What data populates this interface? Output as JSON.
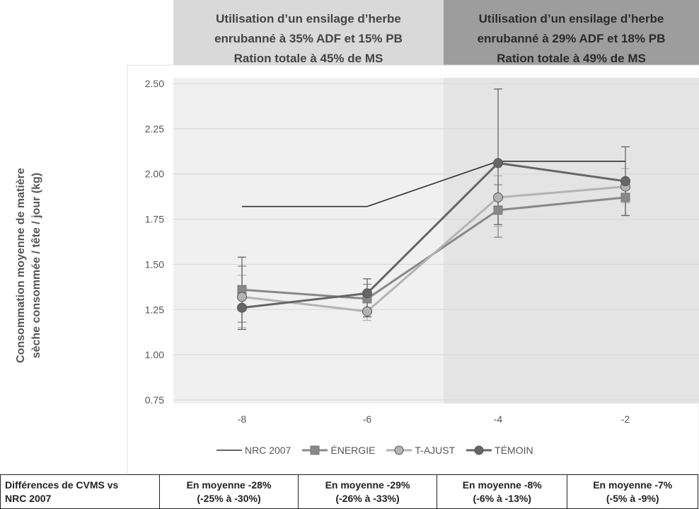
{
  "period_headers": [
    {
      "text": "Utilisation d’un ensilage d’herbe\nenrubanné à 35% ADF et 15% PB\nRation totale à 45% de MS"
    },
    {
      "text": "Utilisation d’un ensilage d’herbe\nenrubanné à 29% ADF et 18% PB\nRation totale à 49% de MS"
    }
  ],
  "chart_data": {
    "type": "line",
    "title": "",
    "xlabel": "",
    "ylabel": "Consommation moyenne de matière\nsèche consommée / tête / jour (kg)",
    "x": [
      -8,
      -6,
      -4,
      -2
    ],
    "x_tick_labels": [
      "-8",
      "-6",
      "-4",
      "-2"
    ],
    "ylim": [
      0.75,
      2.5
    ],
    "y_ticks": [
      0.75,
      1.0,
      1.25,
      1.5,
      1.75,
      2.0,
      2.25,
      2.5
    ],
    "y_tick_labels": [
      "0.75",
      "1.00",
      "1.25",
      "1.50",
      "1.75",
      "2.00",
      "2.25",
      "2.50"
    ],
    "grid": true,
    "legend_position": "bottom",
    "series": [
      {
        "name": "NRC 2007",
        "marker": "none",
        "color": "#333333",
        "values": [
          1.82,
          1.82,
          2.07,
          2.07
        ]
      },
      {
        "name": "ÉNERGIE",
        "marker": "square",
        "color": "#888888",
        "values": [
          1.36,
          1.31,
          1.8,
          1.87
        ],
        "error_high": [
          1.49,
          1.39,
          1.94,
          1.97
        ],
        "error_low": [
          1.18,
          1.21,
          1.65,
          1.77
        ]
      },
      {
        "name": "T-AJUST",
        "marker": "circle",
        "color": "#b3b3b3",
        "values": [
          1.32,
          1.24,
          1.87,
          1.93
        ],
        "error_high": [
          1.44,
          1.32,
          1.99,
          2.03
        ],
        "error_low": [
          1.15,
          1.19,
          1.71,
          1.84
        ]
      },
      {
        "name": "TÉMOIN",
        "marker": "circle",
        "color": "#666666",
        "values": [
          1.26,
          1.34,
          2.06,
          1.96
        ],
        "error_high": [
          1.54,
          1.42,
          2.47,
          2.15
        ],
        "error_low": [
          1.14,
          1.21,
          1.72,
          1.77
        ]
      }
    ]
  },
  "differences_table": {
    "label": "Différences de CVMS vs\nNRC 2007",
    "cells": [
      "En moyenne -28%\n(-25% à -30%)",
      "En moyenne -29%\n(-26% à -33%)",
      "En moyenne -8%\n(-6% à -13%)",
      "En moyenne -7%\n(-5% à -9%)"
    ]
  }
}
